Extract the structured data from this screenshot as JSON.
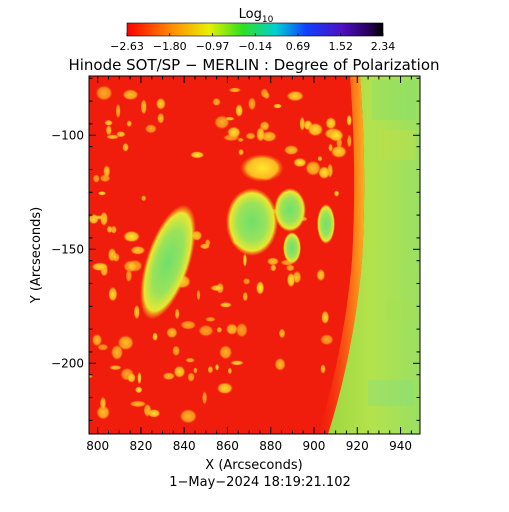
{
  "colorbar": {
    "label_main": "Log",
    "label_sub": "10",
    "tick_labels": [
      "−2.63",
      "−1.80",
      "−0.97",
      "−0.14",
      "0.69",
      "1.52",
      "2.34"
    ],
    "range": [
      -2.63,
      2.34
    ]
  },
  "chart_data": {
    "type": "heatmap",
    "title": "Hinode SOT/SP − MERLIN : Degree of Polarization",
    "xlabel": "X (Arcseconds)",
    "ylabel": "Y (Arcseconds)",
    "footer": "1−May−2024  18:19:21.102",
    "xlim": [
      796,
      949
    ],
    "ylim": [
      -231,
      -74
    ],
    "x_ticks": [
      800,
      820,
      840,
      860,
      880,
      900,
      920,
      940
    ],
    "x_tick_labels": [
      "800",
      "820",
      "840",
      "860",
      "880",
      "900",
      "920",
      "940"
    ],
    "y_ticks": [
      -100,
      -150,
      -200
    ],
    "y_tick_labels": [
      "−100",
      "−150",
      "−200"
    ],
    "colormap": "rainbow",
    "colors": {
      "background_disk": "#f01c0c",
      "limb_offdisk": "#b6e04a",
      "hotspot": "#7fe060",
      "bright_patch": "#ffe020"
    }
  }
}
